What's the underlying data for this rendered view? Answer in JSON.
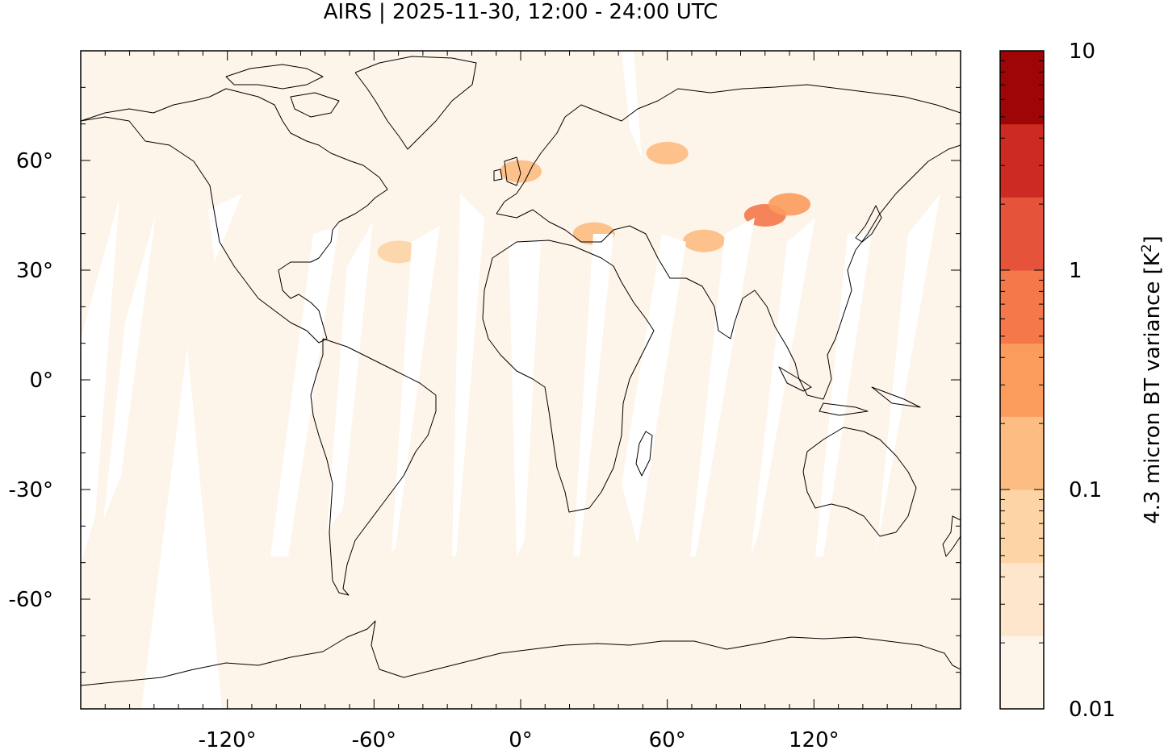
{
  "title": "AIRS | 2025-11-30, 12:00 - 24:00 UTC",
  "map": {
    "projection": "equirectangular",
    "lon_range": [
      -180,
      180
    ],
    "lat_range": [
      -90,
      90
    ],
    "lon_ticks": [
      -120,
      -60,
      0,
      60,
      120
    ],
    "lat_ticks": [
      60,
      30,
      0,
      -30,
      -60
    ],
    "lon_tick_labels": [
      "-120°",
      "-60°",
      "0°",
      "60°",
      "120°"
    ],
    "lat_tick_labels": [
      "60°",
      "30°",
      "0°",
      "-30°",
      "-60°"
    ],
    "background_color": "#fdf4ea",
    "coastline_color": "#000000"
  },
  "colorbar": {
    "label_main": "4.3 micron BT variance [K",
    "label_sup": "2",
    "label_close": "]",
    "scale": "log",
    "range": [
      0.01,
      10
    ],
    "tick_labels": [
      "10",
      "1",
      "0.1",
      "0.01"
    ],
    "colors": [
      "#fdf4ea",
      "#fde6cb",
      "#fdd4a5",
      "#fdbd82",
      "#fb9c5d",
      "#f4784a",
      "#e5533b",
      "#cd2b21",
      "#9e0507"
    ]
  },
  "chart_data": {
    "type": "heatmap",
    "title": "AIRS | 2025-11-30, 12:00 - 24:00 UTC",
    "xlabel": "",
    "ylabel": "",
    "xlim": [
      -180,
      180
    ],
    "ylim": [
      -90,
      90
    ],
    "variable": "4.3 micron BT variance [K2]",
    "color_scale": "log",
    "color_range": [
      0.01,
      10
    ],
    "orbit_gaps": "white diagonal swath gaps between satellite tracks",
    "hotspots": [
      {
        "lon": 60,
        "lat": 62,
        "value": 0.1
      },
      {
        "lon": 100,
        "lat": 45,
        "value": 0.5
      },
      {
        "lon": 110,
        "lat": 48,
        "value": 0.4
      },
      {
        "lon": 75,
        "lat": 38,
        "value": 0.2
      },
      {
        "lon": 30,
        "lat": 40,
        "value": 0.15
      },
      {
        "lon": 0,
        "lat": 57,
        "value": 0.1
      },
      {
        "lon": -50,
        "lat": 35,
        "value": 0.08
      }
    ]
  }
}
